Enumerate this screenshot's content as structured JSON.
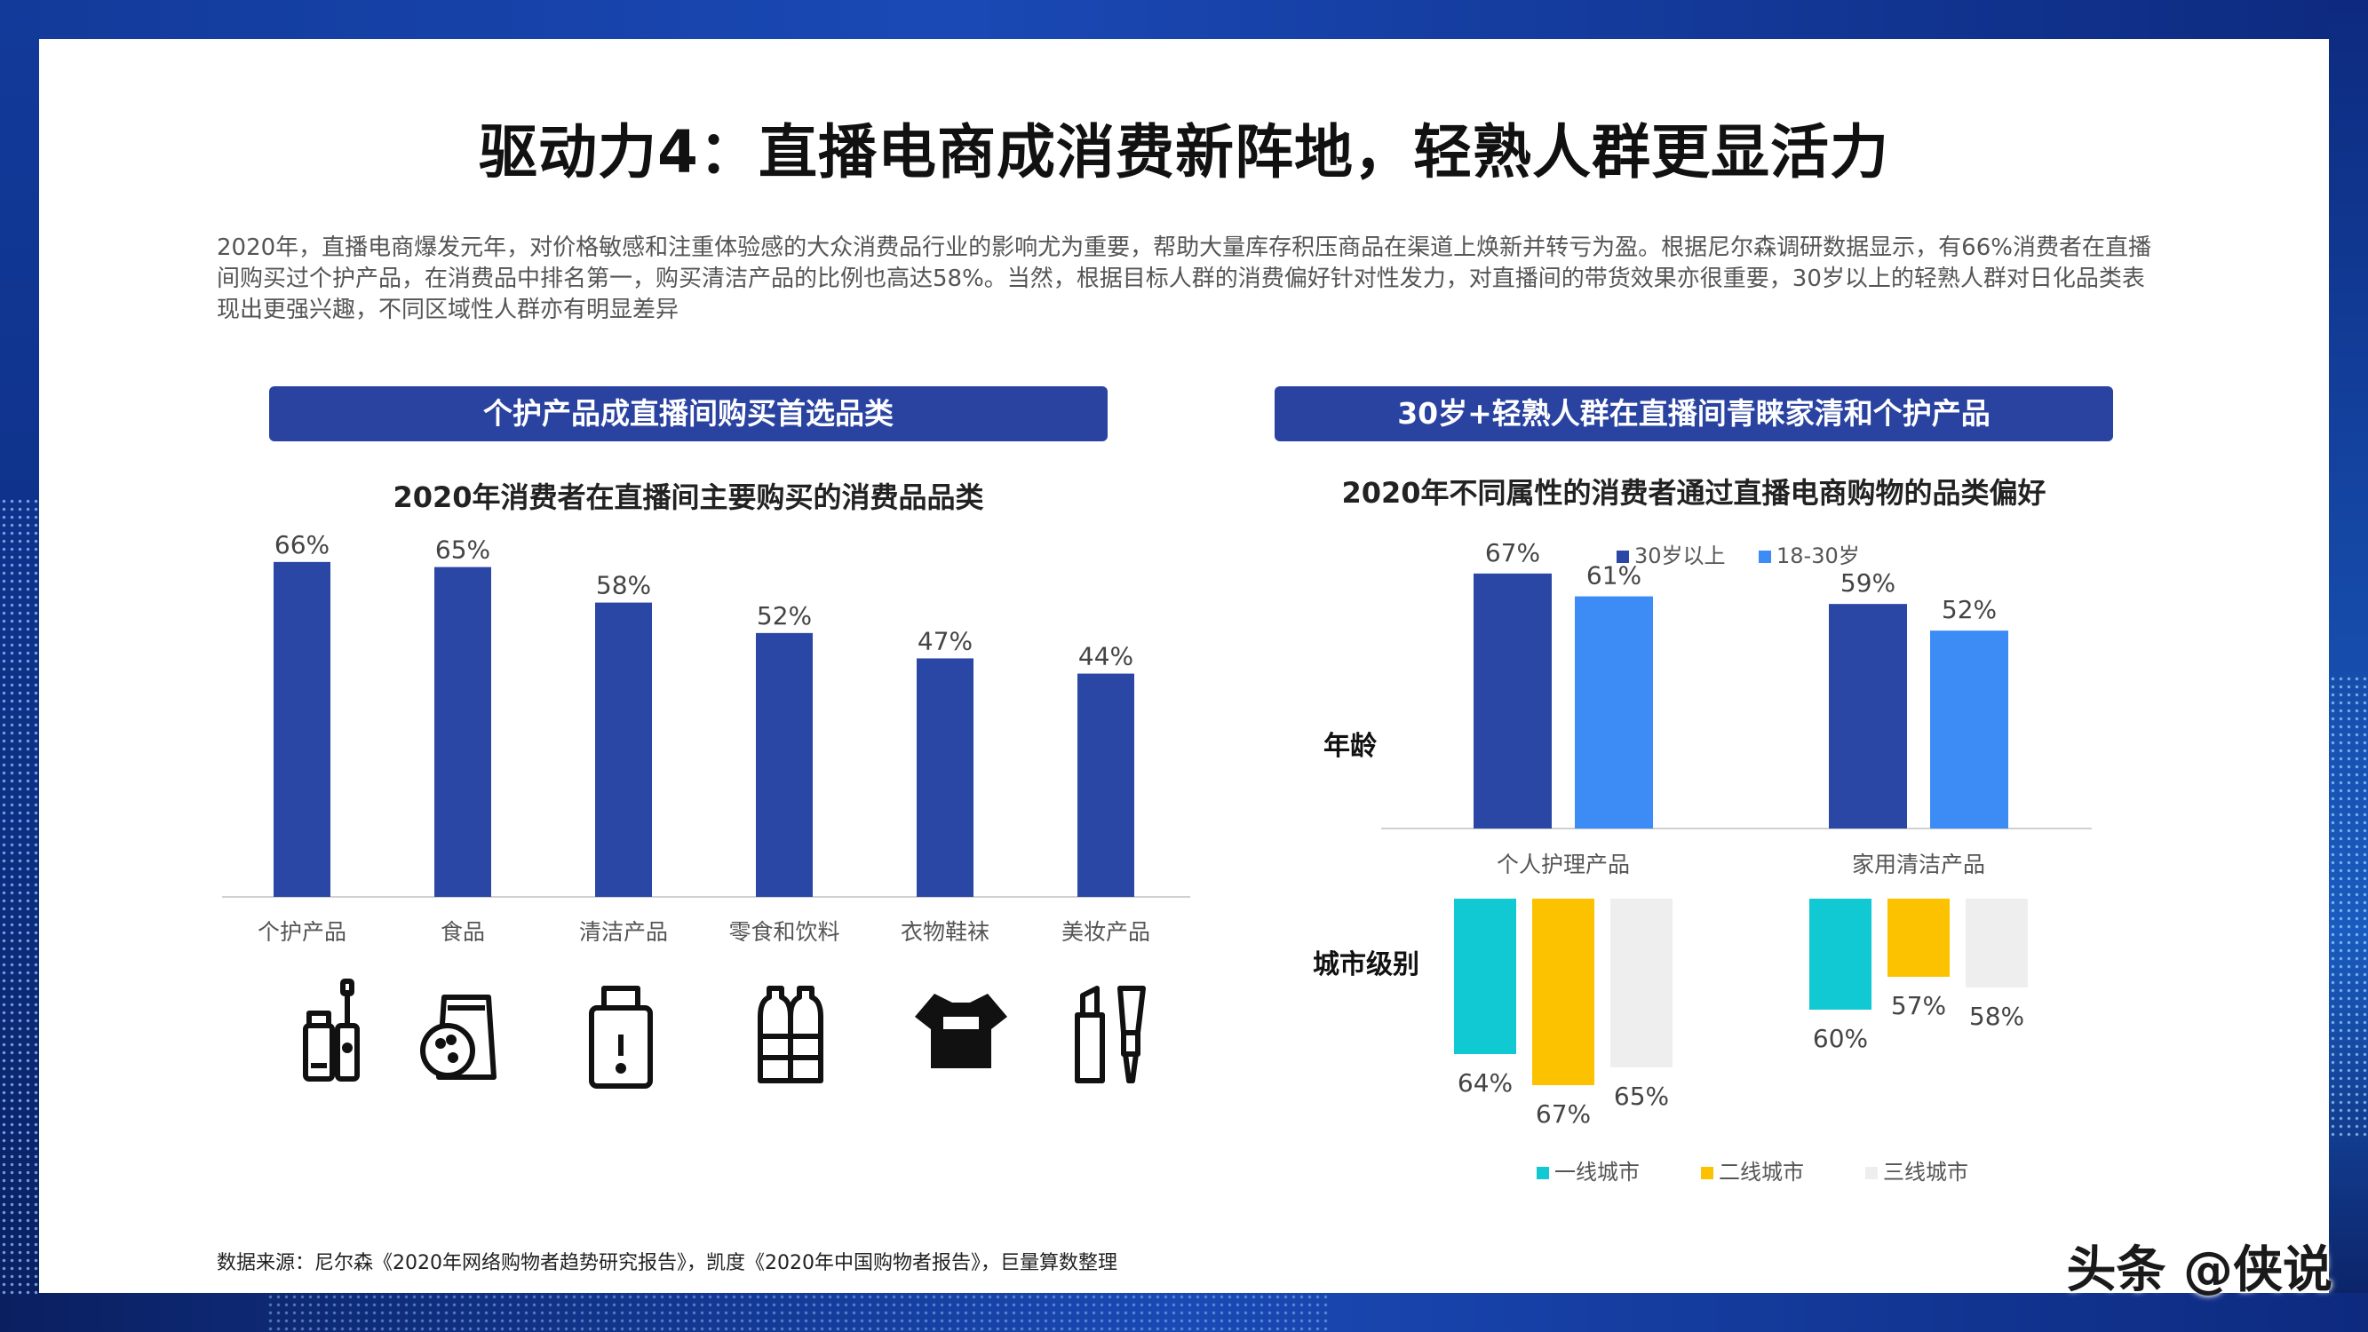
{
  "title": "驱动力4：直播电商成消费新阵地，轻熟人群更显活力",
  "intro": "2020年，直播电商爆发元年，对价格敏感和注重体验感的大众消费品行业的影响尤为重要，帮助大量库存积压商品在渠道上焕新并转亏为盈。根据尼尔森调研数据显示，有66%消费者在直播间购买过个护产品，在消费品中排名第一，购买清洁产品的比例也高达58%。当然，根据目标人群的消费偏好针对性发力，对直播间的带货效果亦很重要，30岁以上的轻熟人群对日化品类表现出更强兴趣，不同区域性人群亦有明显差异",
  "left": {
    "banner": "个护产品成直播间购买首选品类",
    "subtitle": "2020年消费者在直播间主要购买的消费品品类"
  },
  "right": {
    "banner": "30岁+轻熟人群在直播间青睐家清和个护产品",
    "subtitle": "2020年不同属性的消费者通过直播电商购物的品类偏好",
    "row_labels": [
      "年龄",
      "城市级别"
    ]
  },
  "source": "数据来源：尼尔森《2020年网络购物者趋势研究报告》，凯度《2020年中国购物者报告》，巨量算数整理",
  "watermark": "头条 @侠说",
  "colors": {
    "bar_blue": "#2a47a6",
    "series_dark": "#2a47a6",
    "series_light": "#3d8bf5",
    "tier1": "#11c9d2",
    "tier2": "#fcc200",
    "tier3": "#eeeeee"
  },
  "icons": [
    "lotion-toothbrush-icon",
    "snack-bag-icon",
    "cleaner-bottle-icon",
    "drink-bottles-icon",
    "tshirt-icon",
    "makeup-icon"
  ],
  "chart_data": [
    {
      "type": "bar",
      "title": "2020年消费者在直播间主要购买的消费品品类",
      "categories": [
        "个护产品",
        "食品",
        "清洁产品",
        "零食和饮料",
        "衣物鞋袜",
        "美妆产品"
      ],
      "values": [
        66,
        65,
        58,
        52,
        47,
        44
      ],
      "labels": [
        "66%",
        "65%",
        "58%",
        "52%",
        "47%",
        "44%"
      ],
      "ylim": [
        0,
        70
      ]
    },
    {
      "type": "bar",
      "title": "年龄",
      "categories": [
        "个人护理产品",
        "家用清洁产品"
      ],
      "series": [
        {
          "name": "30岁以上",
          "values": [
            67,
            59
          ],
          "labels": [
            "67%",
            "59%"
          ]
        },
        {
          "name": "18-30岁",
          "values": [
            61,
            52
          ],
          "labels": [
            "61%",
            "52%"
          ]
        }
      ],
      "ylim": [
        0,
        70
      ]
    },
    {
      "type": "bar",
      "title": "城市级别",
      "categories": [
        "个人护理产品",
        "家用清洁产品"
      ],
      "series": [
        {
          "name": "一线城市",
          "values": [
            64,
            60
          ],
          "labels": [
            "64%",
            "60%"
          ]
        },
        {
          "name": "二线城市",
          "values": [
            67,
            57
          ],
          "labels": [
            "67%",
            "57%"
          ]
        },
        {
          "name": "三线城市",
          "values": [
            65,
            58
          ],
          "labels": [
            "65%",
            "58%"
          ]
        }
      ],
      "ylim": [
        0,
        70
      ]
    }
  ]
}
